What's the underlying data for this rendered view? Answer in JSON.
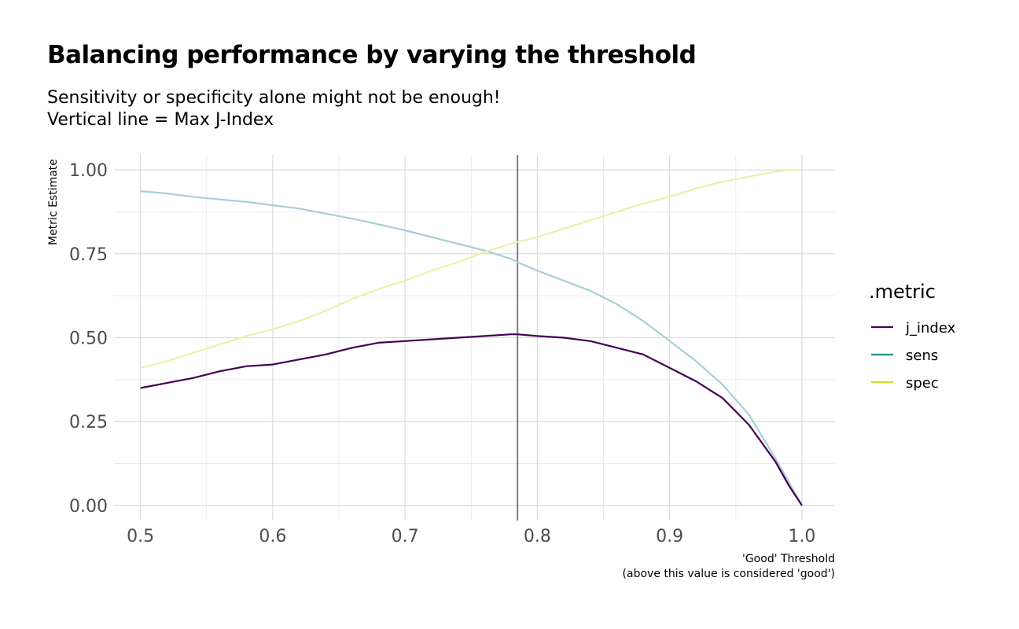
{
  "chart_data": {
    "type": "line",
    "title": "Balancing performance by varying the threshold",
    "subtitle": [
      "Sensitivity or specificity alone might not be enough!",
      "Vertical line = Max J-Index"
    ],
    "xlabel": [
      "'Good' Threshold",
      "(above this value is considered 'good')"
    ],
    "ylabel": "Metric Estimate",
    "xlim": [
      0.48,
      1.025
    ],
    "ylim": [
      -0.045,
      1.045
    ],
    "x_ticks": [
      "0.5",
      "0.6",
      "0.7",
      "0.8",
      "0.9",
      "1.0"
    ],
    "x_tick_values": [
      0.5,
      0.6,
      0.7,
      0.8,
      0.9,
      1.0
    ],
    "y_ticks": [
      "0.00",
      "0.25",
      "0.50",
      "0.75",
      "1.00"
    ],
    "y_tick_values": [
      0,
      0.25,
      0.5,
      0.75,
      1.0
    ],
    "grid": true,
    "vline": 0.785,
    "legend": {
      "title": ".metric",
      "position": "right"
    },
    "series": [
      {
        "name": "j_index",
        "color": "#440154",
        "display_color": "#440154",
        "x": [
          0.5,
          0.52,
          0.54,
          0.56,
          0.58,
          0.6,
          0.62,
          0.64,
          0.66,
          0.68,
          0.7,
          0.72,
          0.74,
          0.76,
          0.78,
          0.785,
          0.8,
          0.82,
          0.84,
          0.86,
          0.88,
          0.9,
          0.92,
          0.94,
          0.96,
          0.98,
          0.99,
          1.0
        ],
        "y": [
          0.35,
          0.365,
          0.38,
          0.4,
          0.415,
          0.42,
          0.435,
          0.45,
          0.47,
          0.485,
          0.49,
          0.495,
          0.5,
          0.505,
          0.51,
          0.51,
          0.505,
          0.5,
          0.49,
          0.47,
          0.45,
          0.41,
          0.37,
          0.32,
          0.24,
          0.13,
          0.06,
          0.0
        ]
      },
      {
        "name": "sens",
        "color": "#21908c",
        "display_color": "#a8cfd4",
        "x": [
          0.5,
          0.52,
          0.54,
          0.56,
          0.58,
          0.6,
          0.62,
          0.64,
          0.66,
          0.68,
          0.7,
          0.72,
          0.74,
          0.76,
          0.78,
          0.785,
          0.8,
          0.82,
          0.84,
          0.86,
          0.88,
          0.9,
          0.92,
          0.94,
          0.96,
          0.98,
          0.99,
          1.0
        ],
        "y": [
          0.937,
          0.93,
          0.92,
          0.912,
          0.905,
          0.895,
          0.885,
          0.87,
          0.855,
          0.838,
          0.82,
          0.8,
          0.78,
          0.76,
          0.735,
          0.725,
          0.7,
          0.67,
          0.64,
          0.6,
          0.55,
          0.49,
          0.43,
          0.36,
          0.27,
          0.14,
          0.07,
          0.0
        ]
      },
      {
        "name": "spec",
        "color": "#c7e020",
        "display_color": "#e8f2a6",
        "x": [
          0.5,
          0.52,
          0.54,
          0.56,
          0.58,
          0.6,
          0.62,
          0.64,
          0.66,
          0.68,
          0.7,
          0.72,
          0.74,
          0.76,
          0.78,
          0.785,
          0.8,
          0.82,
          0.84,
          0.86,
          0.88,
          0.9,
          0.92,
          0.94,
          0.96,
          0.98,
          0.99,
          1.0
        ],
        "y": [
          0.41,
          0.43,
          0.455,
          0.48,
          0.505,
          0.525,
          0.55,
          0.58,
          0.615,
          0.645,
          0.67,
          0.7,
          0.725,
          0.755,
          0.78,
          0.785,
          0.8,
          0.825,
          0.85,
          0.875,
          0.9,
          0.92,
          0.945,
          0.965,
          0.98,
          0.995,
          1.0,
          1.0
        ]
      }
    ]
  }
}
